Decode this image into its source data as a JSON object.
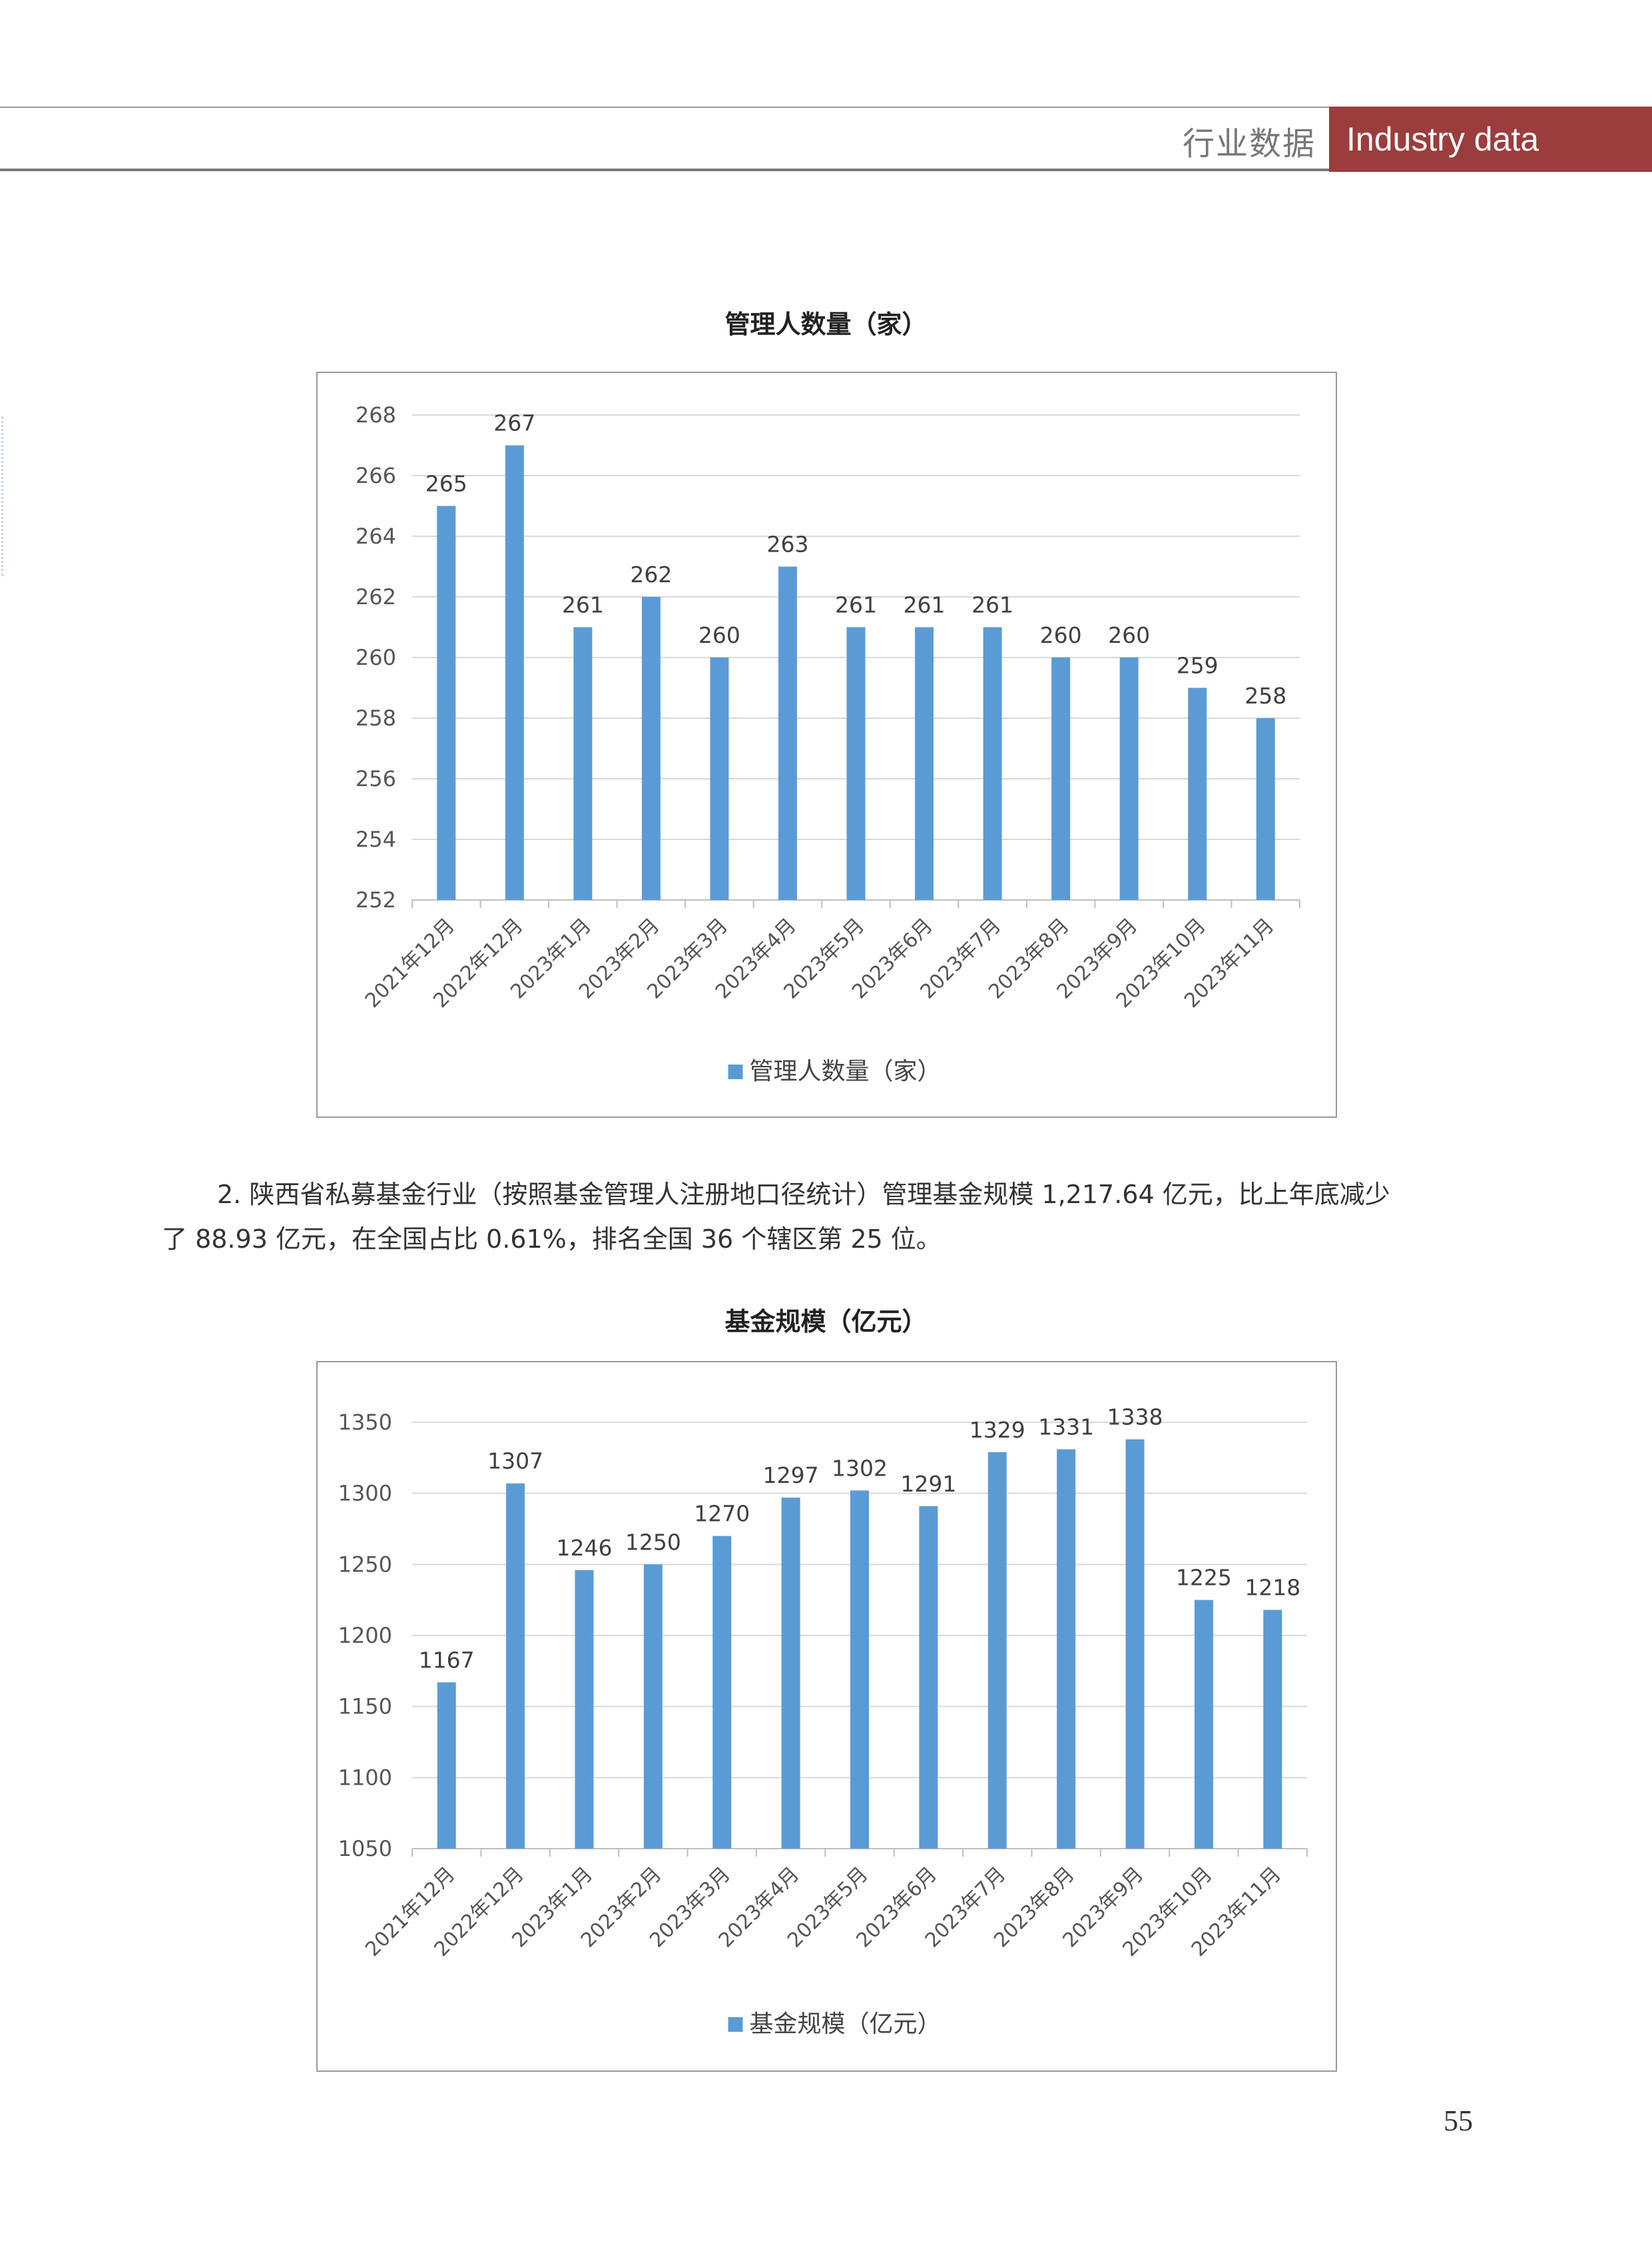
{
  "header": {
    "section_cn": "行业数据",
    "section_en": "Industry data",
    "accent_color": "#9b3d3d"
  },
  "paragraph": {
    "line1": "2. 陕西省私募基金行业（按照基金管理人注册地口径统计）管理基金规模 1,217.64 亿元，比上年底减少",
    "line2": "了 88.93 亿元，在全国占比 0.61%，排名全国 36 个辖区第 25 位。"
  },
  "page_number": "55",
  "chart_data": [
    {
      "type": "bar",
      "title": "管理人数量（家）",
      "legend": "管理人数量（家）",
      "legend_position": "bottom",
      "categories": [
        "2021年12月",
        "2022年12月",
        "2023年1月",
        "2023年2月",
        "2023年3月",
        "2023年4月",
        "2023年5月",
        "2023年6月",
        "2023年7月",
        "2023年8月",
        "2023年9月",
        "2023年10月",
        "2023年11月"
      ],
      "values": [
        265,
        267,
        261,
        262,
        260,
        263,
        261,
        261,
        261,
        260,
        260,
        259,
        258
      ],
      "ylim": [
        252,
        268
      ],
      "yticks": [
        252,
        254,
        256,
        258,
        260,
        262,
        264,
        266,
        268
      ],
      "grid": true,
      "color": "#5b9bd5"
    },
    {
      "type": "bar",
      "title": "基金规模（亿元）",
      "legend": "基金规模（亿元）",
      "legend_position": "bottom",
      "categories": [
        "2021年12月",
        "2022年12月",
        "2023年1月",
        "2023年2月",
        "2023年3月",
        "2023年4月",
        "2023年5月",
        "2023年6月",
        "2023年7月",
        "2023年8月",
        "2023年9月",
        "2023年10月",
        "2023年11月"
      ],
      "values": [
        1167,
        1307,
        1246,
        1250,
        1270,
        1297,
        1302,
        1291,
        1329,
        1331,
        1338,
        1225,
        1218
      ],
      "ylim": [
        1050,
        1350
      ],
      "yticks": [
        1050,
        1100,
        1150,
        1200,
        1250,
        1300,
        1350
      ],
      "grid": true,
      "color": "#5b9bd5"
    }
  ]
}
